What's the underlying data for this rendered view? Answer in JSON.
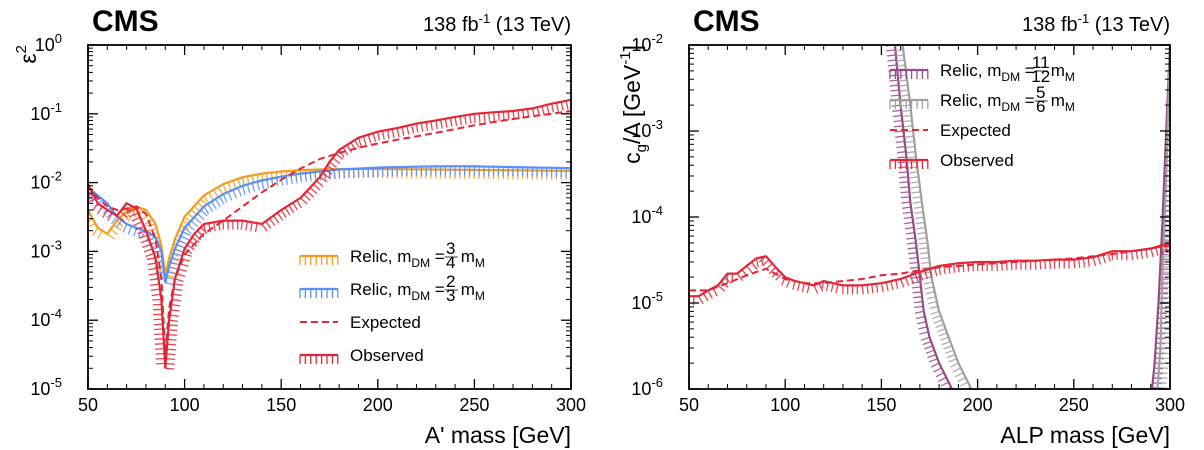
{
  "chart_data": [
    {
      "type": "line",
      "experiment": "CMS",
      "luminosity": "138 fb",
      "lumi_exp": "-1",
      "energy": "(13 TeV)",
      "xlabel": "A' mass [GeV]",
      "ylabel": "ε",
      "ylabel_exp": "2",
      "xlim": [
        50,
        300
      ],
      "ylim": [
        1e-05,
        1
      ],
      "yscale": "log",
      "xticks": [
        50,
        100,
        150,
        200,
        250,
        300
      ],
      "yticks_exp": [
        -5,
        -4,
        -3,
        -2,
        -1,
        0
      ],
      "legend_position": "bottom-right",
      "series": [
        {
          "name": "Relic, m",
          "name_sub": "DM",
          "frac_num": "3",
          "frac_den": "4",
          "name_tail": "m",
          "name_tail_sub": "M",
          "style": "hatched",
          "color": "#F39C1F",
          "x": [
            50,
            55,
            60,
            65,
            70,
            75,
            80,
            85,
            88,
            90,
            92,
            95,
            100,
            110,
            120,
            130,
            140,
            150,
            160,
            170,
            180,
            190,
            200,
            210,
            220,
            230,
            240,
            250,
            260,
            270,
            280,
            290,
            300
          ],
          "y": [
            0.004,
            0.0022,
            0.0018,
            0.0028,
            0.0038,
            0.0045,
            0.004,
            0.0025,
            0.0012,
            0.00045,
            0.0008,
            0.0015,
            0.0032,
            0.0065,
            0.0095,
            0.012,
            0.0135,
            0.0145,
            0.0152,
            0.0155,
            0.0157,
            0.0158,
            0.0158,
            0.0157,
            0.0156,
            0.0155,
            0.0154,
            0.0153,
            0.0152,
            0.0151,
            0.015,
            0.0149,
            0.0148
          ]
        },
        {
          "name": "Relic, m",
          "name_sub": "DM",
          "frac_num": "2",
          "frac_den": "3",
          "name_tail": "m",
          "name_tail_sub": "M",
          "style": "hatched",
          "color": "#5790FC",
          "x": [
            50,
            55,
            60,
            65,
            70,
            75,
            80,
            85,
            88,
            90,
            92,
            95,
            100,
            110,
            120,
            130,
            140,
            150,
            160,
            170,
            180,
            190,
            200,
            210,
            220,
            230,
            240,
            250,
            260,
            270,
            280,
            290,
            300
          ],
          "y": [
            0.0085,
            0.0065,
            0.005,
            0.0032,
            0.0025,
            0.0022,
            0.002,
            0.0016,
            0.001,
            0.00035,
            0.0006,
            0.0011,
            0.0022,
            0.0045,
            0.0068,
            0.009,
            0.0108,
            0.0122,
            0.0135,
            0.0145,
            0.0155,
            0.016,
            0.0165,
            0.0168,
            0.017,
            0.0172,
            0.0173,
            0.0172,
            0.017,
            0.0168,
            0.0166,
            0.0164,
            0.0162
          ]
        },
        {
          "name": "Expected",
          "style": "dashed",
          "color": "#E42536",
          "x": [
            50,
            55,
            60,
            65,
            70,
            75,
            80,
            85,
            88,
            90,
            92,
            95,
            100,
            110,
            120,
            130,
            140,
            150,
            160,
            170,
            180,
            190,
            200,
            210,
            220,
            230,
            240,
            250,
            260,
            270,
            280,
            290,
            300
          ],
          "y": [
            0.009,
            0.006,
            0.0045,
            0.004,
            0.0042,
            0.0045,
            0.0035,
            0.0015,
            0.0004,
            3e-05,
            0.00015,
            0.0004,
            0.0009,
            0.0018,
            0.0028,
            0.0045,
            0.0072,
            0.011,
            0.016,
            0.022,
            0.027,
            0.032,
            0.037,
            0.042,
            0.047,
            0.053,
            0.06,
            0.068,
            0.076,
            0.084,
            0.092,
            0.1,
            0.11
          ]
        },
        {
          "name": "Observed",
          "style": "hatched",
          "color": "#E42536",
          "x": [
            50,
            55,
            60,
            65,
            70,
            75,
            80,
            85,
            88,
            90,
            92,
            95,
            100,
            105,
            110,
            120,
            130,
            140,
            150,
            160,
            170,
            175,
            180,
            190,
            200,
            210,
            220,
            230,
            240,
            250,
            260,
            270,
            280,
            290,
            300
          ],
          "y": [
            0.0095,
            0.005,
            0.004,
            0.0033,
            0.005,
            0.0042,
            0.002,
            0.0008,
            0.0002,
            2e-05,
            0.0001,
            0.0004,
            0.0011,
            0.0018,
            0.0025,
            0.0028,
            0.0028,
            0.0025,
            0.004,
            0.006,
            0.012,
            0.02,
            0.03,
            0.045,
            0.055,
            0.062,
            0.072,
            0.08,
            0.09,
            0.1,
            0.105,
            0.11,
            0.12,
            0.14,
            0.16
          ]
        }
      ]
    },
    {
      "type": "line",
      "experiment": "CMS",
      "luminosity": "138 fb",
      "lumi_exp": "-1",
      "energy": "(13 TeV)",
      "xlabel": "ALP mass [GeV]",
      "ylabel": "c",
      "ylabel_sub": "g",
      "ylabel_tail": "/Λ [GeV",
      "ylabel_exp": "-1",
      "ylabel_end": "]",
      "xlim": [
        50,
        300
      ],
      "ylim": [
        1e-06,
        0.01
      ],
      "yscale": "log",
      "xticks": [
        50,
        100,
        150,
        200,
        250,
        300
      ],
      "yticks_exp": [
        -6,
        -5,
        -4,
        -3,
        -2
      ],
      "legend_position": "top-right",
      "series": [
        {
          "name": "Relic, m",
          "name_sub": "DM",
          "frac_num": "11",
          "frac_den": "12",
          "name_tail": "m",
          "name_tail_sub": "M",
          "style": "hatched",
          "color": "#964A8B",
          "x": [
            157,
            160,
            163,
            165,
            168,
            170,
            172,
            175,
            180,
            185,
            190
          ],
          "y": [
            0.01,
            0.002,
            0.0005,
            0.00015,
            5e-05,
            2e-05,
            8e-06,
            4e-06,
            2e-06,
            1.2e-06,
            7e-07
          ],
          "x2": [
            290,
            292,
            294,
            296,
            298,
            300
          ],
          "y2": [
            7e-07,
            2e-06,
            1e-05,
            8e-05,
            0.001,
            0.01
          ]
        },
        {
          "name": "Relic, m",
          "name_sub": "DM",
          "frac_num": "5",
          "frac_den": "6",
          "name_tail": "m",
          "name_tail_sub": "M",
          "style": "hatched",
          "color": "#A0A0A0",
          "x": [
            161,
            165,
            168,
            171,
            174,
            176,
            180,
            185,
            190,
            195,
            200
          ],
          "y": [
            0.01,
            0.002,
            0.0005,
            0.00015,
            5e-05,
            2e-05,
            8e-06,
            4e-06,
            2e-06,
            1.2e-06,
            7e-07
          ],
          "x2": [
            293,
            295,
            296,
            298,
            300
          ],
          "y2": [
            7e-07,
            3e-06,
            2e-05,
            0.0003,
            0.01
          ]
        },
        {
          "name": "Expected",
          "style": "dashed",
          "color": "#E42536",
          "x": [
            50,
            60,
            70,
            80,
            90,
            100,
            110,
            120,
            130,
            140,
            150,
            160,
            170,
            180,
            190,
            200,
            210,
            220,
            230,
            240,
            250,
            260,
            270,
            280,
            290,
            300
          ],
          "y": [
            1.4e-05,
            1.4e-05,
            1.7e-05,
            2.1e-05,
            2.5e-05,
            1.9e-05,
            1.7e-05,
            1.7e-05,
            1.8e-05,
            1.9e-05,
            2.1e-05,
            2.2e-05,
            2.4e-05,
            2.6e-05,
            2.7e-05,
            2.8e-05,
            2.9e-05,
            3e-05,
            3.1e-05,
            3.2e-05,
            3.3e-05,
            3.5e-05,
            3.7e-05,
            4e-05,
            4.3e-05,
            4.7e-05
          ]
        },
        {
          "name": "Observed",
          "style": "hatched",
          "color": "#E42536",
          "x": [
            50,
            55,
            60,
            65,
            70,
            75,
            80,
            85,
            90,
            95,
            100,
            105,
            110,
            115,
            120,
            130,
            140,
            150,
            160,
            170,
            180,
            190,
            200,
            210,
            220,
            230,
            240,
            250,
            260,
            270,
            280,
            290,
            300
          ],
          "y": [
            1.2e-05,
            1.2e-05,
            1.4e-05,
            1.6e-05,
            2.2e-05,
            2.2e-05,
            2.7e-05,
            3.3e-05,
            3.5e-05,
            2.6e-05,
            2e-05,
            1.8e-05,
            1.7e-05,
            1.6e-05,
            1.8e-05,
            1.6e-05,
            1.6e-05,
            1.7e-05,
            1.9e-05,
            2.3e-05,
            2.7e-05,
            2.9e-05,
            3e-05,
            3e-05,
            3.1e-05,
            3.1e-05,
            3.2e-05,
            3.2e-05,
            3.4e-05,
            4e-05,
            4e-05,
            4.3e-05,
            5e-05
          ]
        }
      ]
    }
  ]
}
